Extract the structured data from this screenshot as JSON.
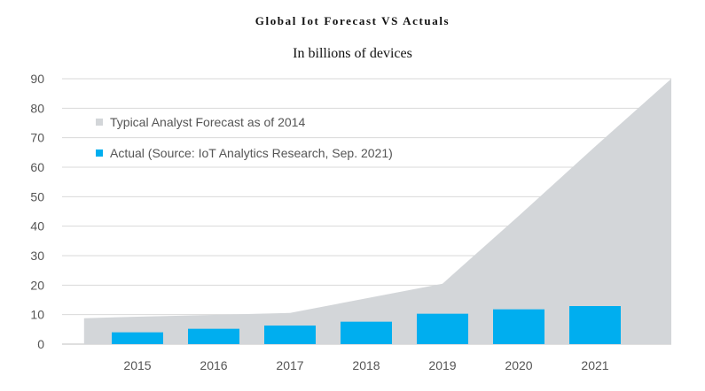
{
  "chart_data": {
    "type": "bar",
    "title": "Global Iot Forecast VS Actuals",
    "subtitle": "In billions of devices",
    "xlabel": "",
    "ylabel": "",
    "categories": [
      "2015",
      "2016",
      "2017",
      "2018",
      "2019",
      "2020",
      "2021"
    ],
    "ylim": [
      0,
      90
    ],
    "yticks": [
      0,
      10,
      20,
      30,
      40,
      50,
      60,
      70,
      80,
      90
    ],
    "grid": true,
    "legend_position": "top-left",
    "series": [
      {
        "name": "Typical Analyst Forecast as of 2014",
        "kind": "area",
        "color": "#d3d6d9",
        "x": [
          2014.3,
          2015,
          2016,
          2017,
          2018,
          2019,
          2020,
          2021,
          2022
        ],
        "values": [
          8.8,
          9.3,
          9.9,
          10.6,
          15.5,
          20.5,
          43.5,
          67.0,
          90.0
        ]
      },
      {
        "name": "Actual (Source: IoT Analytics Research, Sep. 2021)",
        "kind": "bar",
        "color": "#00aeef",
        "values": [
          4.0,
          5.2,
          6.3,
          7.6,
          10.3,
          11.8,
          12.9
        ]
      }
    ]
  }
}
